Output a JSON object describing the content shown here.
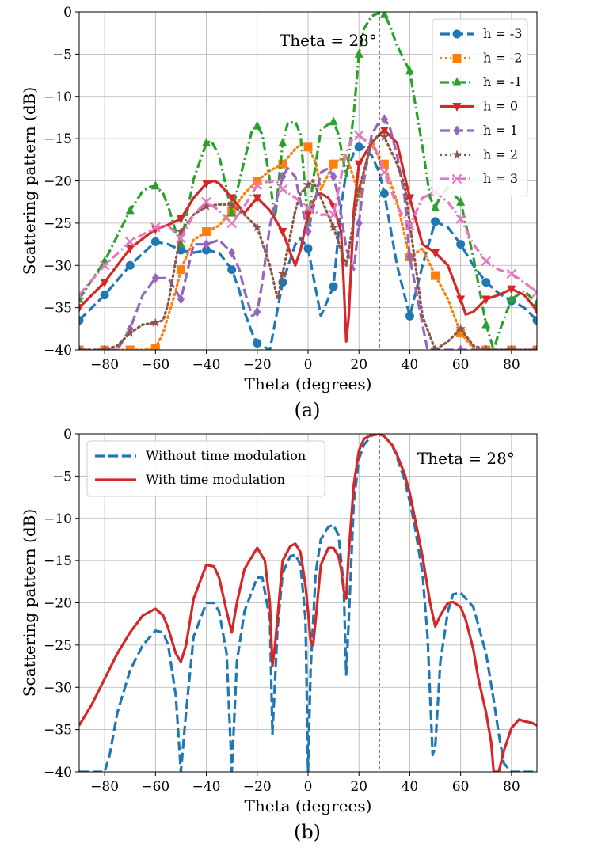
{
  "chart_data": [
    {
      "type": "line",
      "panel_label": "(a)",
      "xlabel": "Theta (degrees)",
      "ylabel": "Scattering pattern (dB)",
      "xlim": [
        -90,
        90
      ],
      "ylim": [
        -40,
        0
      ],
      "xticks": [
        -80,
        -60,
        -40,
        -20,
        0,
        20,
        40,
        60,
        80
      ],
      "yticks": [
        0,
        -5,
        -10,
        -15,
        -20,
        -25,
        -30,
        -35,
        -40
      ],
      "grid": true,
      "legend_position": "top-right",
      "annotation": {
        "text": "Theta = 28°",
        "vline_x": 28
      },
      "series": [
        {
          "name": "h = -3",
          "color": "#1f77b4",
          "dash": "dashed",
          "marker": "circle",
          "x": [
            -90,
            -80,
            -70,
            -60,
            -55,
            -50,
            -45,
            -40,
            -35,
            -30,
            -27,
            -25,
            -22,
            -20,
            -15,
            -10,
            -5,
            -3,
            0,
            5,
            10,
            13,
            15,
            18,
            20,
            22,
            25,
            28,
            30,
            35,
            40,
            45,
            50,
            55,
            60,
            65,
            70,
            75,
            80,
            85,
            90
          ],
          "y": [
            -36.5,
            -33.5,
            -30,
            -27.2,
            -27.5,
            -28.2,
            -28.5,
            -28.2,
            -28.5,
            -30.5,
            -33,
            -35.5,
            -38,
            -39.2,
            -40,
            -32,
            -27.5,
            -26.8,
            -28,
            -36,
            -32.5,
            -23,
            -19,
            -16.7,
            -16,
            -16,
            -17,
            -19,
            -21.5,
            -30,
            -36,
            -30,
            -24.8,
            -25.5,
            -27.5,
            -30,
            -32,
            -33.3,
            -34.2,
            -35,
            -36.5
          ]
        },
        {
          "name": "h = -2",
          "color": "#ff7f0e",
          "dash": "dotted",
          "marker": "square",
          "x": [
            -90,
            -80,
            -70,
            -65,
            -60,
            -57,
            -55,
            -52,
            -50,
            -45,
            -40,
            -35,
            -30,
            -25,
            -20,
            -15,
            -10,
            -5,
            -2,
            0,
            3,
            5,
            10,
            15,
            20,
            25,
            28,
            30,
            35,
            40,
            45,
            50,
            55,
            60,
            65,
            70,
            75,
            80,
            85,
            90
          ],
          "y": [
            -40,
            -40,
            -40,
            -40,
            -39.8,
            -38,
            -36,
            -33,
            -30.5,
            -27,
            -26,
            -25.3,
            -23.5,
            -21.5,
            -20,
            -18.8,
            -18,
            -16.2,
            -15.5,
            -16,
            -17.8,
            -21,
            -18,
            -17,
            -21.5,
            -15,
            -17.5,
            -18,
            -22.5,
            -29,
            -28,
            -31.2,
            -34,
            -38,
            -39.8,
            -40,
            -40,
            -40,
            -40,
            -40
          ]
        },
        {
          "name": "h = -1",
          "color": "#2ca02c",
          "dash": "dashdot",
          "marker": "triangle",
          "x": [
            -90,
            -80,
            -70,
            -65,
            -62,
            -60,
            -57,
            -55,
            -52,
            -50,
            -45,
            -40,
            -38,
            -35,
            -32,
            -30,
            -25,
            -22,
            -20,
            -18,
            -15,
            -13,
            -10,
            -8,
            -5,
            -3,
            0,
            2,
            5,
            8,
            10,
            12,
            15,
            18,
            20,
            22,
            25,
            28,
            30,
            32,
            35,
            40,
            45,
            48,
            50,
            52,
            55,
            60,
            65,
            70,
            73,
            75,
            80,
            85,
            90
          ],
          "y": [
            -34,
            -29.5,
            -23.5,
            -21.2,
            -20.7,
            -20.6,
            -21.5,
            -23,
            -26,
            -27.5,
            -19.8,
            -15.5,
            -15.3,
            -17,
            -21,
            -23.8,
            -17.5,
            -14,
            -13.5,
            -14.5,
            -20,
            -24.5,
            -15.5,
            -13.2,
            -13,
            -14.5,
            -25,
            -20,
            -14,
            -13.3,
            -13,
            -14.5,
            -19.5,
            -12,
            -5,
            -2,
            -0.5,
            -0.1,
            -0.3,
            -1.5,
            -4,
            -7,
            -16,
            -22,
            -23.2,
            -21.8,
            -20.8,
            -22.5,
            -29,
            -37,
            -40,
            -38,
            -34,
            -33,
            -34.5
          ]
        },
        {
          "name": "h = 0",
          "color": "#d62728",
          "dash": "solid",
          "marker": "triangle-down",
          "x": [
            -90,
            -80,
            -70,
            -60,
            -55,
            -50,
            -45,
            -40,
            -37,
            -35,
            -30,
            -25,
            -20,
            -15,
            -10,
            -7,
            -5,
            -3,
            0,
            3,
            5,
            8,
            10,
            13,
            14,
            15,
            16,
            18,
            20,
            25,
            28,
            30,
            35,
            40,
            45,
            50,
            55,
            60,
            62,
            65,
            70,
            75,
            80,
            85,
            90
          ],
          "y": [
            -35,
            -32,
            -28,
            -25.7,
            -25.2,
            -24.5,
            -22,
            -20.3,
            -20,
            -20.3,
            -22,
            -23.8,
            -22,
            -23.5,
            -26,
            -28.5,
            -30,
            -28.2,
            -24,
            -21.8,
            -21.5,
            -22,
            -23,
            -26,
            -32,
            -39,
            -36,
            -23.5,
            -18,
            -15.5,
            -14.5,
            -14,
            -15.5,
            -22,
            -27.5,
            -28.5,
            -30,
            -34,
            -35.8,
            -35.5,
            -34,
            -33.5,
            -32.8,
            -33.5,
            -35.3
          ]
        },
        {
          "name": "h = 1",
          "color": "#9467bd",
          "dash": "dashed",
          "marker": "diamond",
          "x": [
            -90,
            -85,
            -80,
            -75,
            -70,
            -65,
            -60,
            -55,
            -52,
            -50,
            -45,
            -40,
            -35,
            -30,
            -27,
            -25,
            -22,
            -20,
            -18,
            -15,
            -10,
            -8,
            -5,
            -3,
            0,
            3,
            5,
            8,
            10,
            12,
            15,
            18,
            20,
            22,
            25,
            28,
            30,
            32,
            35,
            38,
            40,
            45,
            47,
            50,
            55,
            60,
            65,
            70,
            75,
            80,
            85,
            90
          ],
          "y": [
            -40,
            -40,
            -40,
            -40,
            -37.5,
            -33.5,
            -31.5,
            -31.5,
            -33,
            -34,
            -27.5,
            -27.5,
            -27,
            -28.5,
            -30.5,
            -33,
            -36,
            -35.5,
            -32,
            -25.3,
            -19.5,
            -18.5,
            -19.5,
            -22.5,
            -26,
            -22,
            -19,
            -18.5,
            -19.5,
            -22,
            -28,
            -30.5,
            -25,
            -20,
            -14.5,
            -13,
            -12.7,
            -13.5,
            -17,
            -22,
            -29,
            -37,
            -40,
            -40,
            -40,
            -40,
            -40,
            -40,
            -40,
            -40,
            -40,
            -40
          ]
        },
        {
          "name": "h = 2",
          "color": "#8c564b",
          "dash": "dotted",
          "marker": "star",
          "x": [
            -90,
            -80,
            -75,
            -70,
            -65,
            -60,
            -57,
            -55,
            -50,
            -45,
            -40,
            -35,
            -30,
            -25,
            -20,
            -15,
            -12,
            -10,
            -5,
            -3,
            0,
            2,
            5,
            10,
            15,
            20,
            25,
            28,
            30,
            35,
            38,
            40,
            45,
            50,
            55,
            60,
            65,
            70,
            75,
            80,
            85,
            90
          ],
          "y": [
            -40,
            -40,
            -39.5,
            -38,
            -37,
            -36.8,
            -36.5,
            -34.5,
            -26,
            -24,
            -23,
            -22.8,
            -22.8,
            -24,
            -25.5,
            -30,
            -34,
            -31,
            -23.5,
            -21.5,
            -20.5,
            -20,
            -22,
            -25.5,
            -30,
            -21,
            -15.5,
            -14.5,
            -14.8,
            -18,
            -20.5,
            -25,
            -36,
            -40,
            -39,
            -37.5,
            -39.5,
            -40,
            -40,
            -40,
            -40,
            -40
          ]
        },
        {
          "name": "h = 3",
          "color": "#e377c2",
          "dash": "dashdot",
          "marker": "x",
          "x": [
            -90,
            -80,
            -70,
            -60,
            -55,
            -50,
            -45,
            -40,
            -35,
            -30,
            -25,
            -20,
            -15,
            -12,
            -10,
            -5,
            0,
            5,
            10,
            13,
            15,
            17,
            20,
            25,
            28,
            30,
            35,
            40,
            45,
            50,
            55,
            60,
            65,
            70,
            75,
            80,
            85,
            90
          ],
          "y": [
            -33.5,
            -30,
            -27.2,
            -25.5,
            -25.3,
            -26.8,
            -24,
            -22.5,
            -23.5,
            -25,
            -23,
            -20.5,
            -20,
            -20.2,
            -21,
            -22,
            -23.2,
            -24,
            -24,
            -19.5,
            -16.5,
            -15.2,
            -14.6,
            -15.8,
            -17,
            -19,
            -23,
            -25.3,
            -22,
            -21.3,
            -22.5,
            -24.5,
            -27.5,
            -29.5,
            -30.5,
            -31,
            -32,
            -33.2
          ]
        }
      ]
    },
    {
      "type": "line",
      "panel_label": "(b)",
      "xlabel": "Theta (degrees)",
      "ylabel": "Scattering pattern (dB)",
      "xlim": [
        -90,
        90
      ],
      "ylim": [
        -40,
        0
      ],
      "xticks": [
        -80,
        -60,
        -40,
        -20,
        0,
        20,
        40,
        60,
        80
      ],
      "yticks": [
        0,
        -5,
        -10,
        -15,
        -20,
        -25,
        -30,
        -35,
        -40
      ],
      "grid": true,
      "legend_position": "top-left",
      "annotation": {
        "text": "Theta = 28°",
        "vline_x": 28
      },
      "series": [
        {
          "name": "Without time modulation",
          "color": "#1f77b4",
          "dash": "dashed",
          "x": [
            -90,
            -80,
            -78,
            -75,
            -70,
            -65,
            -60,
            -57,
            -55,
            -52,
            -50,
            -48,
            -45,
            -40,
            -37,
            -35,
            -32,
            -30,
            -28,
            -25,
            -20,
            -18,
            -15,
            -14,
            -12,
            -10,
            -7,
            -5,
            -3,
            -1,
            0,
            1,
            3,
            5,
            8,
            10,
            12,
            14,
            15,
            16,
            18,
            20,
            22,
            25,
            28,
            30,
            33,
            35,
            38,
            40,
            42,
            45,
            47,
            48,
            49,
            50,
            52,
            55,
            57,
            60,
            65,
            70,
            73,
            75,
            77,
            80,
            85,
            90
          ],
          "y": [
            -40,
            -40,
            -38,
            -33,
            -28,
            -25,
            -23.3,
            -23.5,
            -25,
            -31,
            -40,
            -33,
            -24,
            -20,
            -20,
            -21,
            -26,
            -40,
            -27,
            -21,
            -17,
            -17,
            -22,
            -35.5,
            -23,
            -16.5,
            -14.5,
            -14.3,
            -15.5,
            -22,
            -40,
            -28,
            -16.5,
            -12.5,
            -11,
            -10.8,
            -12,
            -18,
            -28.5,
            -22,
            -8,
            -3,
            -1.3,
            -0.2,
            0,
            -0.3,
            -1.3,
            -2.8,
            -5.5,
            -8,
            -11,
            -16.5,
            -24,
            -31,
            -38,
            -37,
            -27,
            -21,
            -19,
            -18.8,
            -20.5,
            -26,
            -31.5,
            -35.5,
            -39,
            -40,
            -40,
            -40
          ]
        },
        {
          "name": "With time modulation",
          "color": "#d62728",
          "dash": "solid",
          "x": [
            -90,
            -85,
            -80,
            -75,
            -70,
            -65,
            -60,
            -57,
            -55,
            -52,
            -50,
            -48,
            -45,
            -40,
            -37,
            -35,
            -32,
            -30,
            -28,
            -25,
            -20,
            -17,
            -15,
            -14,
            -13,
            -10,
            -7,
            -5,
            -3,
            -1,
            0,
            1,
            2,
            3,
            5,
            8,
            10,
            12,
            13,
            14,
            15,
            16,
            18,
            20,
            22,
            25,
            28,
            30,
            33,
            35,
            38,
            40,
            42,
            45,
            48,
            50,
            52,
            55,
            57,
            60,
            62,
            65,
            67,
            70,
            72,
            73,
            75,
            77,
            80,
            83,
            85,
            88,
            90
          ],
          "y": [
            -34.5,
            -32,
            -29,
            -26,
            -23.5,
            -21.5,
            -20.7,
            -21.5,
            -23,
            -26,
            -27,
            -25,
            -19.5,
            -15.5,
            -15.7,
            -17,
            -21,
            -23.5,
            -20,
            -16,
            -13.5,
            -15,
            -20,
            -27.5,
            -25,
            -15,
            -13.3,
            -13,
            -14,
            -18,
            -21,
            -24.5,
            -25,
            -22,
            -15.5,
            -13.5,
            -13.5,
            -14.5,
            -16,
            -18.5,
            -19.5,
            -14,
            -6,
            -2,
            -0.6,
            -0.1,
            0,
            -0.3,
            -1.3,
            -2.5,
            -4.8,
            -7,
            -10,
            -14.5,
            -20,
            -22.8,
            -21.5,
            -20,
            -19.9,
            -20.5,
            -22,
            -25.5,
            -29,
            -33,
            -36.5,
            -40,
            -40,
            -37.5,
            -34.8,
            -33.8,
            -34,
            -34.2,
            -34.5
          ]
        }
      ]
    }
  ]
}
